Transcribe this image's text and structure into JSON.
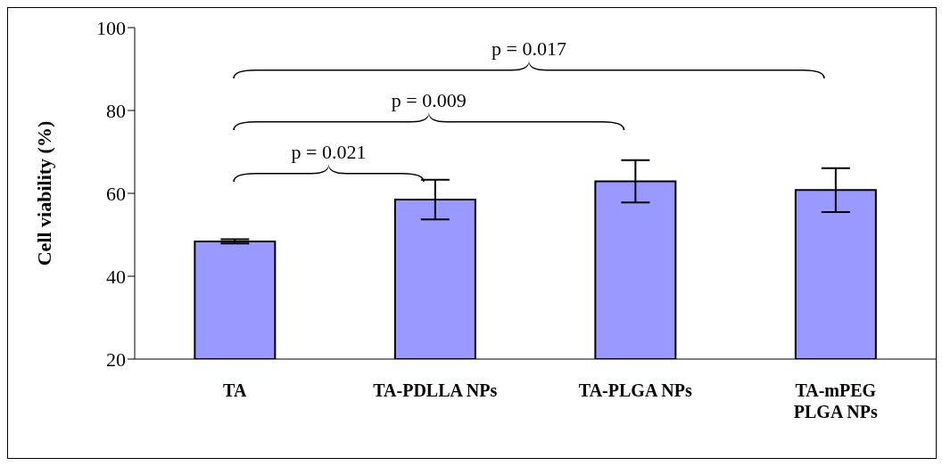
{
  "chart_data": {
    "type": "bar",
    "ylabel": "Cell viability (%)",
    "categories": [
      "TA",
      "TA-PDLLA NPs",
      "TA-PLGA NPs",
      "TA-mPEG\nPLGA NPs"
    ],
    "values": [
      48.4,
      58.5,
      62.9,
      60.8
    ],
    "errors": [
      0.5,
      4.8,
      5.1,
      5.3
    ],
    "color": "#9999ff",
    "ylim": [
      20,
      100
    ],
    "yticks": [
      20,
      40,
      60,
      80,
      100
    ],
    "annotations": [
      "p = 0.021",
      "p = 0.009",
      "p = 0.017"
    ]
  }
}
